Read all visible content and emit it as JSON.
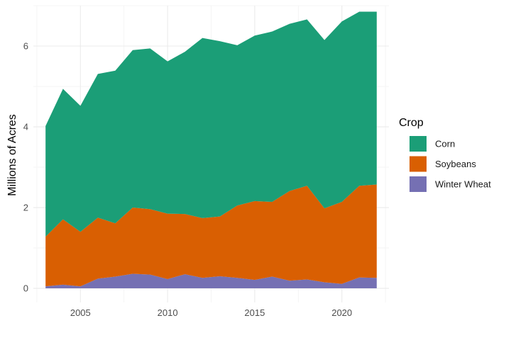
{
  "chart_data": {
    "type": "area",
    "stacked": true,
    "title": "",
    "xlabel": "",
    "ylabel": "Millions of Acres",
    "xlim": [
      2002.3,
      2022.7
    ],
    "ylim": [
      -0.35,
      7.0
    ],
    "x_ticks": [
      2005,
      2010,
      2015,
      2020
    ],
    "y_ticks": [
      0,
      2,
      4,
      6
    ],
    "grid": true,
    "legend": {
      "title": "Crop",
      "placement": "right",
      "entries": [
        "Corn",
        "Soybeans",
        "Winter Wheat"
      ]
    },
    "x": [
      2003,
      2004,
      2005,
      2006,
      2007,
      2008,
      2009,
      2010,
      2011,
      2012,
      2013,
      2014,
      2015,
      2016,
      2017,
      2018,
      2019,
      2020,
      2021,
      2022
    ],
    "series": [
      {
        "name": "Winter Wheat",
        "color": "#7570b3",
        "values": [
          0.05,
          0.09,
          0.05,
          0.24,
          0.29,
          0.36,
          0.34,
          0.23,
          0.35,
          0.26,
          0.3,
          0.26,
          0.21,
          0.29,
          0.19,
          0.22,
          0.15,
          0.11,
          0.27,
          0.26
        ]
      },
      {
        "name": "Soybeans",
        "color": "#d95f02",
        "values": [
          1.23,
          1.62,
          1.35,
          1.51,
          1.32,
          1.64,
          1.62,
          1.62,
          1.49,
          1.48,
          1.48,
          1.79,
          1.95,
          1.85,
          2.22,
          2.32,
          1.83,
          2.03,
          2.27,
          2.31
        ]
      },
      {
        "name": "Corn",
        "color": "#1b9e77",
        "values": [
          2.74,
          3.23,
          3.12,
          3.56,
          3.78,
          3.9,
          3.98,
          3.77,
          4.02,
          4.46,
          4.34,
          3.97,
          4.1,
          4.22,
          4.14,
          4.12,
          4.17,
          4.47,
          4.31,
          4.28
        ]
      }
    ]
  }
}
